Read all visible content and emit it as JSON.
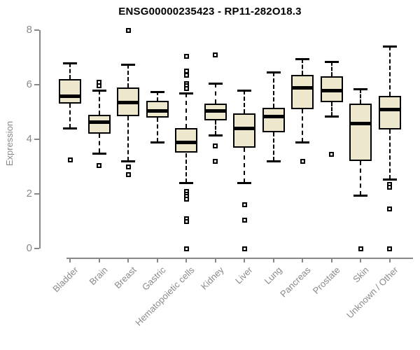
{
  "chart_data": {
    "type": "boxplot",
    "title": "ENSG00000235423 - RP11-282O18.3",
    "ylabel": "Expression",
    "xlabel": "",
    "ylim": [
      0,
      8
    ],
    "yticks": [
      0,
      2,
      4,
      6,
      8
    ],
    "grid": false,
    "legend": "none",
    "box_fill_color": "#ece7cd",
    "box_line_color": "#000000",
    "axis_color": "#888888",
    "label_color": "#8a8a8a",
    "categories": [
      "Bladder",
      "Brain",
      "Breast",
      "Gastric",
      "Hematopoietic cells",
      "Kidney",
      "Liver",
      "Lung",
      "Pancreas",
      "Prostate",
      "Skin",
      "Unknown / Other"
    ],
    "series": [
      {
        "name": "Bladder",
        "whisker_low": 4.4,
        "q1": 5.3,
        "median": 5.6,
        "q3": 6.2,
        "whisker_high": 6.8,
        "outliers": [
          3.25
        ]
      },
      {
        "name": "Brain",
        "whisker_low": 3.5,
        "q1": 4.2,
        "median": 4.65,
        "q3": 4.9,
        "whisker_high": 5.8,
        "outliers": [
          6.1,
          5.95,
          3.05
        ]
      },
      {
        "name": "Breast",
        "whisker_low": 3.2,
        "q1": 4.85,
        "median": 5.35,
        "q3": 5.9,
        "whisker_high": 6.75,
        "outliers": [
          8.0,
          3.0,
          2.7
        ]
      },
      {
        "name": "Gastric",
        "whisker_low": 3.9,
        "q1": 4.8,
        "median": 5.05,
        "q3": 5.4,
        "whisker_high": 5.75,
        "outliers": []
      },
      {
        "name": "Hematopoietic cells",
        "whisker_low": 2.4,
        "q1": 3.5,
        "median": 3.9,
        "q3": 4.4,
        "whisker_high": 5.7,
        "outliers": [
          7.05,
          6.5,
          6.35,
          6.05,
          5.95,
          5.85,
          2.1,
          2.0,
          1.9,
          1.8,
          1.1,
          1.0,
          0.0
        ]
      },
      {
        "name": "Kidney",
        "whisker_low": 4.15,
        "q1": 4.7,
        "median": 5.05,
        "q3": 5.3,
        "whisker_high": 6.05,
        "outliers": [
          7.1,
          3.75,
          3.2
        ]
      },
      {
        "name": "Liver",
        "whisker_low": 2.4,
        "q1": 3.7,
        "median": 4.4,
        "q3": 4.95,
        "whisker_high": 5.8,
        "outliers": [
          1.6,
          1.05,
          0.0
        ]
      },
      {
        "name": "Lung",
        "whisker_low": 3.2,
        "q1": 4.25,
        "median": 4.85,
        "q3": 5.15,
        "whisker_high": 6.45,
        "outliers": []
      },
      {
        "name": "Pancreas",
        "whisker_low": 3.9,
        "q1": 5.1,
        "median": 5.9,
        "q3": 6.35,
        "whisker_high": 6.95,
        "outliers": [
          3.2
        ]
      },
      {
        "name": "Prostate",
        "whisker_low": 4.85,
        "q1": 5.35,
        "median": 5.8,
        "q3": 6.3,
        "whisker_high": 6.85,
        "outliers": [
          3.45
        ]
      },
      {
        "name": "Skin",
        "whisker_low": 1.95,
        "q1": 3.2,
        "median": 4.6,
        "q3": 5.3,
        "whisker_high": 5.85,
        "outliers": [
          0.0
        ]
      },
      {
        "name": "Unknown / Other",
        "whisker_low": 2.55,
        "q1": 4.35,
        "median": 5.1,
        "q3": 5.6,
        "whisker_high": 7.4,
        "outliers": [
          2.35,
          2.25,
          1.45,
          0.0
        ]
      }
    ]
  }
}
